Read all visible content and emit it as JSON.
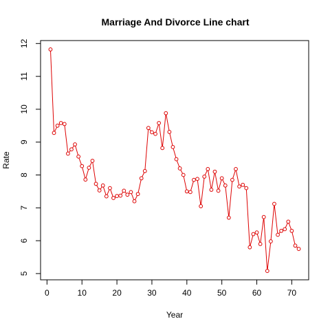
{
  "chart_data": {
    "type": "line",
    "title": "Marriage And Divorce Line chart",
    "xlabel": "Year",
    "ylabel": "Rate",
    "xlim": [
      -1.84,
      74.84
    ],
    "ylim": [
      4.81,
      12.09
    ],
    "xticks": [
      0,
      10,
      20,
      30,
      40,
      50,
      60,
      70
    ],
    "yticks": [
      5,
      6,
      7,
      8,
      9,
      10,
      11,
      12
    ],
    "grid": false,
    "line_color": "#dd0000",
    "series": [
      {
        "x": [
          1,
          2,
          3,
          4,
          5,
          6,
          7,
          8,
          9,
          10,
          11,
          12,
          13,
          14,
          15,
          16,
          17,
          18,
          19,
          20,
          21,
          22,
          23,
          24,
          25,
          26,
          27,
          28,
          29,
          30,
          31,
          32,
          33,
          34,
          35,
          36,
          37,
          38,
          39,
          40,
          41,
          42,
          43,
          44,
          45,
          46,
          47,
          48,
          49,
          50,
          51,
          52,
          53,
          54,
          55,
          56,
          57,
          58,
          59,
          60,
          61,
          62,
          63,
          64,
          65,
          66,
          67,
          68,
          69,
          70,
          71,
          72
        ],
        "values": [
          11.82,
          9.28,
          9.5,
          9.58,
          9.55,
          8.65,
          8.78,
          8.93,
          8.56,
          8.27,
          7.86,
          8.22,
          8.43,
          7.73,
          7.53,
          7.68,
          7.35,
          7.6,
          7.3,
          7.36,
          7.37,
          7.52,
          7.4,
          7.48,
          7.2,
          7.42,
          7.9,
          8.12,
          9.43,
          9.3,
          9.25,
          9.58,
          8.82,
          9.88,
          9.31,
          8.85,
          8.48,
          8.2,
          8.0,
          7.5,
          7.48,
          7.85,
          7.88,
          7.05,
          7.95,
          8.18,
          7.55,
          8.1,
          7.52,
          7.9,
          7.68,
          6.7,
          7.85,
          8.18,
          7.65,
          7.7,
          7.6,
          5.8,
          6.2,
          6.25,
          5.9,
          6.72,
          5.08,
          5.98,
          7.12,
          6.18,
          6.3,
          6.35,
          6.58,
          6.3,
          5.85,
          5.75
        ]
      }
    ]
  }
}
